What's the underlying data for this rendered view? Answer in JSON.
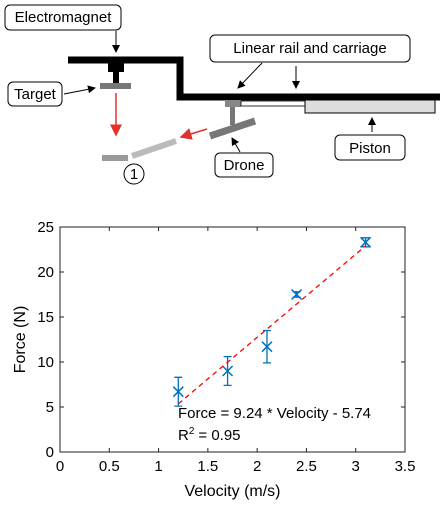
{
  "diagram": {
    "labels": {
      "electromagnet": "Electromagnet",
      "rail": "Linear rail and carriage",
      "target": "Target",
      "drone": "Drone",
      "piston": "Piston",
      "step": "1"
    }
  },
  "chart_data": {
    "type": "scatter",
    "xlabel": "Velocity (m/s)",
    "ylabel": "Force (N)",
    "xlim": [
      0,
      3.5
    ],
    "xticks": [
      0,
      0.5,
      1,
      1.5,
      2,
      2.5,
      3,
      3.5
    ],
    "ylim": [
      0,
      25
    ],
    "yticks": [
      0,
      5,
      10,
      15,
      20,
      25
    ],
    "series": [
      {
        "type": "scatter",
        "color": "#0072BD",
        "x": [
          1.2,
          1.7,
          2.1,
          2.4,
          3.1
        ],
        "values": [
          6.7,
          9.0,
          11.7,
          17.5,
          23.3
        ],
        "errors": [
          1.6,
          1.6,
          1.8,
          0.3,
          0.5
        ]
      },
      {
        "type": "line",
        "color": "#ff0000",
        "x": [
          1.2,
          3.1
        ],
        "values": [
          5.35,
          22.9
        ]
      }
    ],
    "annotation": "Force = 9.24 * Velocity - 5.74",
    "r_squared": {
      "base": "R",
      "superscript": "2",
      "text": "= 0.95"
    }
  }
}
